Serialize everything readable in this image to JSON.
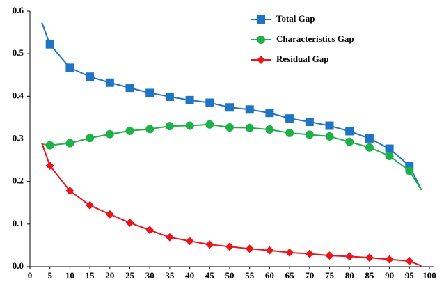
{
  "chart_data": {
    "type": "line",
    "x": [
      3,
      5,
      10,
      15,
      20,
      25,
      30,
      35,
      40,
      45,
      50,
      55,
      60,
      65,
      70,
      75,
      80,
      85,
      90,
      95,
      98
    ],
    "series": [
      {
        "name": "Total Gap",
        "color": "#1f74c4",
        "marker": "square",
        "values": [
          0.573,
          0.522,
          0.467,
          0.446,
          0.432,
          0.42,
          0.408,
          0.399,
          0.391,
          0.385,
          0.374,
          0.369,
          0.361,
          0.348,
          0.34,
          0.331,
          0.318,
          0.301,
          0.277,
          0.237,
          0.18
        ]
      },
      {
        "name": "Characteristics Gap",
        "color": "#1fb04a",
        "marker": "circle",
        "values": [
          0.288,
          0.285,
          0.29,
          0.302,
          0.311,
          0.319,
          0.323,
          0.33,
          0.331,
          0.334,
          0.327,
          0.326,
          0.322,
          0.314,
          0.31,
          0.306,
          0.293,
          0.28,
          0.26,
          0.225,
          0.18
        ]
      },
      {
        "name": "Residual Gap",
        "color": "#e8161b",
        "marker": "diamond",
        "values": [
          0.29,
          0.237,
          0.178,
          0.144,
          0.123,
          0.103,
          0.086,
          0.069,
          0.06,
          0.052,
          0.047,
          0.042,
          0.038,
          0.033,
          0.03,
          0.026,
          0.024,
          0.021,
          0.017,
          0.013,
          0.002
        ]
      }
    ],
    "xlim": [
      0,
      100
    ],
    "xticks": [
      0,
      5,
      10,
      15,
      20,
      25,
      30,
      35,
      40,
      45,
      50,
      55,
      60,
      65,
      70,
      75,
      80,
      85,
      90,
      95,
      100
    ],
    "ylim": [
      0,
      0.6
    ],
    "yticks": [
      {
        "value": 0,
        "label": "0.0"
      },
      0.1,
      0.2,
      0.3,
      0.4,
      0.5,
      0.6
    ],
    "grid": false,
    "legend": "top-right"
  }
}
